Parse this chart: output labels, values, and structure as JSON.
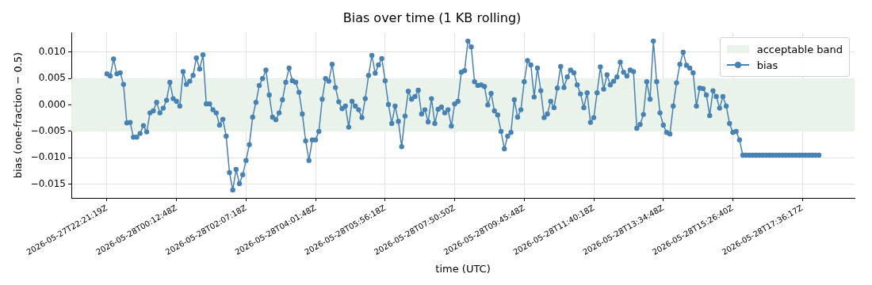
{
  "chart_data": {
    "type": "line",
    "title": "Bias over time (1 KB rolling)",
    "xlabel": "time (UTC)",
    "ylabel": "bias (one-fraction − 0.5)",
    "categories": [
      "2026-05-27T22:21:19Z",
      null,
      null,
      null,
      null,
      null,
      null,
      null,
      null,
      null,
      null,
      null,
      null,
      null,
      null,
      null,
      null,
      null,
      null,
      null,
      null,
      "2026-05-28T00:12:48Z",
      null,
      null,
      null,
      null,
      null,
      null,
      null,
      null,
      null,
      null,
      null,
      null,
      null,
      null,
      null,
      null,
      null,
      null,
      null,
      null,
      "2026-05-28T02:07:18Z",
      null,
      null,
      null,
      null,
      null,
      null,
      null,
      null,
      null,
      null,
      null,
      null,
      null,
      null,
      null,
      null,
      null,
      null,
      null,
      null,
      "2026-05-28T04:01:48Z",
      null,
      null,
      null,
      null,
      null,
      null,
      null,
      null,
      null,
      null,
      null,
      null,
      null,
      null,
      null,
      null,
      null,
      null,
      null,
      null,
      "2026-05-28T05:56:18Z",
      null,
      null,
      null,
      null,
      null,
      null,
      null,
      null,
      null,
      null,
      null,
      null,
      null,
      null,
      null,
      null,
      null,
      null,
      null,
      null,
      "2026-05-28T07:50:50Z",
      null,
      null,
      null,
      null,
      null,
      null,
      null,
      null,
      null,
      null,
      null,
      null,
      null,
      null,
      null,
      null,
      null,
      null,
      null,
      null,
      "2026-05-28T09:45:48Z",
      null,
      null,
      null,
      null,
      null,
      null,
      null,
      null,
      null,
      null,
      null,
      null,
      null,
      null,
      null,
      null,
      null,
      null,
      null,
      null,
      "2026-05-28T11:40:18Z",
      null,
      null,
      null,
      null,
      null,
      null,
      null,
      null,
      null,
      null,
      null,
      null,
      null,
      null,
      null,
      null,
      null,
      null,
      null,
      null,
      "2026-05-28T13:34:48Z",
      null,
      null,
      null,
      null,
      null,
      null,
      null,
      null,
      null,
      null,
      null,
      null,
      null,
      null,
      null,
      null,
      null,
      null,
      null,
      null,
      "2026-05-28T15:26:40Z",
      null,
      null,
      null,
      null,
      null,
      null,
      null,
      null,
      null,
      null,
      null,
      null,
      null,
      null,
      null,
      null,
      null,
      null,
      null,
      null,
      "2026-05-28T17:36:17Z",
      null,
      null,
      null,
      null,
      null
    ],
    "ylim": [
      -0.0176,
      0.0137
    ],
    "yticks": [
      {
        "value": -0.015,
        "label": "−0.015"
      },
      {
        "value": -0.01,
        "label": "−0.010"
      },
      {
        "value": -0.005,
        "label": "−0.005"
      },
      {
        "value": 0,
        "label": "0.000"
      },
      {
        "value": 0.005,
        "label": "0.005"
      },
      {
        "value": 0.01,
        "label": "0.010"
      }
    ],
    "series": [
      {
        "name": "bias",
        "color": "#4682b4",
        "values": [
          0.0059,
          0.0055,
          0.0087,
          0.0059,
          0.0061,
          0.0039,
          -0.0034,
          -0.0033,
          -0.0061,
          -0.0061,
          -0.0054,
          -0.0039,
          -0.0051,
          -0.0015,
          -0.0011,
          0.0005,
          -0.0015,
          -0.0006,
          0.0009,
          0.0043,
          0.0012,
          0.0007,
          -0.0002,
          0.0063,
          0.0039,
          0.0045,
          0.0056,
          0.0089,
          0.0068,
          0.0095,
          0.0002,
          0.0002,
          -0.0009,
          -0.0015,
          -0.0038,
          -0.0027,
          -0.0059,
          -0.0128,
          -0.0161,
          -0.0122,
          -0.0149,
          -0.0132,
          -0.0105,
          -0.0075,
          -0.0023,
          0.0005,
          0.0037,
          0.005,
          0.0066,
          0.0019,
          -0.0023,
          -0.0028,
          -0.0015,
          0.001,
          0.0043,
          0.007,
          0.0046,
          0.0043,
          0.0024,
          -0.0017,
          -0.0068,
          -0.0105,
          -0.0066,
          -0.0066,
          -0.005,
          0.0011,
          0.005,
          0.0045,
          0.0077,
          0.0033,
          0.0006,
          -0.0007,
          -0.0002,
          -0.0042,
          0.0007,
          -0.0002,
          -0.0009,
          -0.0024,
          0.0012,
          0.0056,
          0.0094,
          0.006,
          0.0076,
          0.0088,
          0.0046,
          0.0001,
          -0.0035,
          -0.0002,
          -0.0031,
          -0.0079,
          -0.0021,
          0.0026,
          0.0011,
          0.0016,
          0.0028,
          -0.0017,
          -0.0009,
          -0.0032,
          0.0012,
          -0.0035,
          -0.0008,
          -0.0004,
          -0.0015,
          -0.0009,
          -0.004,
          0.0002,
          0.0007,
          0.0062,
          0.0065,
          0.0121,
          0.011,
          0.0044,
          0.0037,
          0.0038,
          0.0035,
          0.0,
          0.0022,
          -0.0011,
          -0.0019,
          -0.005,
          -0.0083,
          -0.0059,
          -0.0052,
          0.001,
          -0.0023,
          -0.0009,
          0.0044,
          0.0084,
          0.0076,
          0.0015,
          0.007,
          0.0027,
          -0.0024,
          -0.0017,
          0.0007,
          -0.0005,
          0.0032,
          0.0073,
          0.0033,
          0.0053,
          0.0066,
          0.0061,
          0.0038,
          0.0021,
          -0.0005,
          0.0023,
          -0.0033,
          -0.0024,
          0.0023,
          0.0072,
          0.003,
          0.0057,
          0.0038,
          0.0045,
          0.0053,
          0.0081,
          0.0062,
          0.0055,
          0.0066,
          0.0063,
          -0.0044,
          -0.0037,
          -0.0018,
          0.0044,
          0.0011,
          0.0121,
          0.0044,
          -0.0015,
          -0.0038,
          -0.0052,
          -0.0055,
          -0.0002,
          0.0042,
          0.0077,
          0.01,
          0.0075,
          0.007,
          0.0061,
          -0.0002,
          0.0032,
          0.0031,
          0.0019,
          -0.002,
          0.0027,
          0.0016,
          -0.0006,
          0.0016,
          -0.0002,
          -0.0035,
          -0.0052,
          -0.005,
          -0.0066,
          -0.0095,
          -0.0095,
          -0.0095,
          -0.0095,
          -0.0095,
          -0.0095,
          -0.0095,
          -0.0095,
          -0.0095,
          -0.0095,
          -0.0095,
          -0.0095,
          -0.0095,
          -0.0095,
          -0.0095,
          -0.0095,
          -0.0095,
          -0.0095,
          -0.0095,
          -0.0095,
          -0.0095,
          -0.0095,
          -0.0095,
          -0.0095
        ]
      }
    ],
    "bands": [
      {
        "axis": "y",
        "from": -0.005,
        "to": 0.005,
        "label": "acceptable band",
        "color": "#eaf3ea"
      }
    ],
    "grid": true,
    "legend": "top right",
    "marker": "circle"
  }
}
